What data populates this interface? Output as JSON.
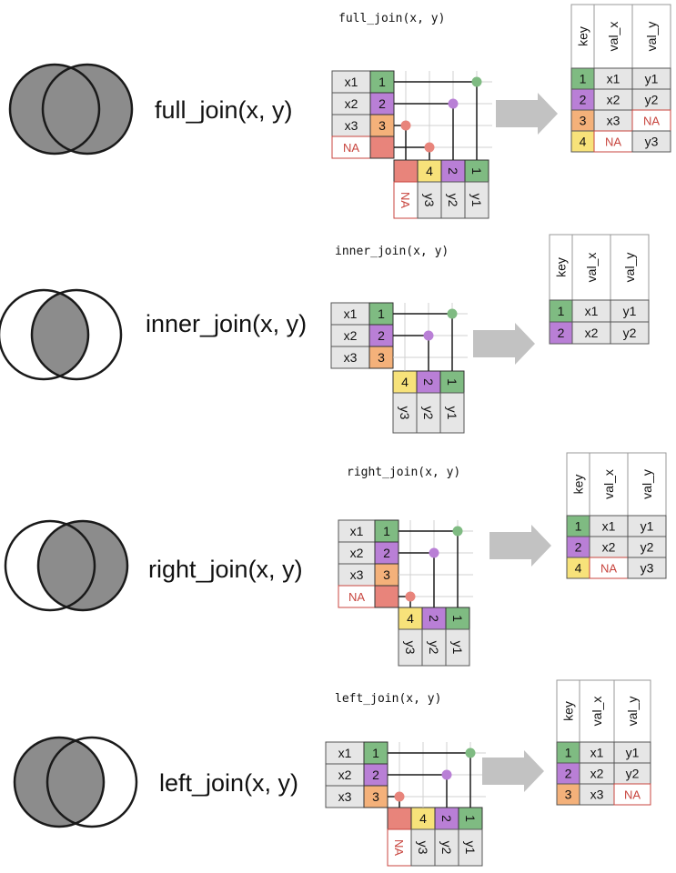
{
  "colors": {
    "k1": "#7fbb82",
    "k2": "#b97fd6",
    "k3": "#f4b17a",
    "k4": "#f7e27a",
    "na_fill": "#e8847b",
    "na_text": "#c8463f",
    "value_cell": "#e6e6e6",
    "venn_fill": "#8c8c8c",
    "arrow": "#c2c2c2",
    "line": "#1a1a1a"
  },
  "panels": [
    {
      "id": "full",
      "label": "full_join(x, y)",
      "title": "full_join(x, y)",
      "venn_mode": "both",
      "x_table": [
        {
          "val": "x1",
          "key": "1"
        },
        {
          "val": "x2",
          "key": "2"
        },
        {
          "val": "x3",
          "key": "3"
        },
        {
          "val": "NA",
          "key": "NA"
        }
      ],
      "y_table": [
        {
          "key": "NA",
          "val": "NA"
        },
        {
          "key": "4",
          "val": "y3"
        },
        {
          "key": "2",
          "val": "y2"
        },
        {
          "key": "1",
          "val": "y1"
        }
      ],
      "result": {
        "headers": [
          "key",
          "val_x",
          "val_y"
        ],
        "rows": [
          {
            "key": "1",
            "val_x": "x1",
            "val_y": "y1"
          },
          {
            "key": "2",
            "val_x": "x2",
            "val_y": "y2"
          },
          {
            "key": "3",
            "val_x": "x3",
            "val_y": "NA"
          },
          {
            "key": "4",
            "val_x": "NA",
            "val_y": "y3"
          }
        ]
      }
    },
    {
      "id": "inner",
      "label": "inner_join(x, y)",
      "title": "inner_join(x, y)",
      "venn_mode": "intersection",
      "x_table": [
        {
          "val": "x1",
          "key": "1"
        },
        {
          "val": "x2",
          "key": "2"
        },
        {
          "val": "x3",
          "key": "3"
        }
      ],
      "y_table": [
        {
          "key": "4",
          "val": "y3"
        },
        {
          "key": "2",
          "val": "y2"
        },
        {
          "key": "1",
          "val": "y1"
        }
      ],
      "result": {
        "headers": [
          "key",
          "val_x",
          "val_y"
        ],
        "rows": [
          {
            "key": "1",
            "val_x": "x1",
            "val_y": "y1"
          },
          {
            "key": "2",
            "val_x": "x2",
            "val_y": "y2"
          }
        ]
      }
    },
    {
      "id": "right",
      "label": "right_join(x, y)",
      "title": "right_join(x, y)",
      "venn_mode": "right",
      "x_table": [
        {
          "val": "x1",
          "key": "1"
        },
        {
          "val": "x2",
          "key": "2"
        },
        {
          "val": "x3",
          "key": "3"
        },
        {
          "val": "NA",
          "key": "NA"
        }
      ],
      "y_table": [
        {
          "key": "4",
          "val": "y3"
        },
        {
          "key": "2",
          "val": "y2"
        },
        {
          "key": "1",
          "val": "y1"
        }
      ],
      "result": {
        "headers": [
          "key",
          "val_x",
          "val_y"
        ],
        "rows": [
          {
            "key": "1",
            "val_x": "x1",
            "val_y": "y1"
          },
          {
            "key": "2",
            "val_x": "x2",
            "val_y": "y2"
          },
          {
            "key": "4",
            "val_x": "NA",
            "val_y": "y3"
          }
        ]
      }
    },
    {
      "id": "left",
      "label": "left_join(x, y)",
      "title": "left_join(x, y)",
      "venn_mode": "left",
      "x_table": [
        {
          "val": "x1",
          "key": "1"
        },
        {
          "val": "x2",
          "key": "2"
        },
        {
          "val": "x3",
          "key": "3"
        }
      ],
      "y_table": [
        {
          "key": "NA",
          "val": "NA"
        },
        {
          "key": "4",
          "val": "y3"
        },
        {
          "key": "2",
          "val": "y2"
        },
        {
          "key": "1",
          "val": "y1"
        }
      ],
      "result": {
        "headers": [
          "key",
          "val_x",
          "val_y"
        ],
        "rows": [
          {
            "key": "1",
            "val_x": "x1",
            "val_y": "y1"
          },
          {
            "key": "2",
            "val_x": "x2",
            "val_y": "y2"
          },
          {
            "key": "3",
            "val_x": "x3",
            "val_y": "NA"
          }
        ]
      }
    }
  ]
}
